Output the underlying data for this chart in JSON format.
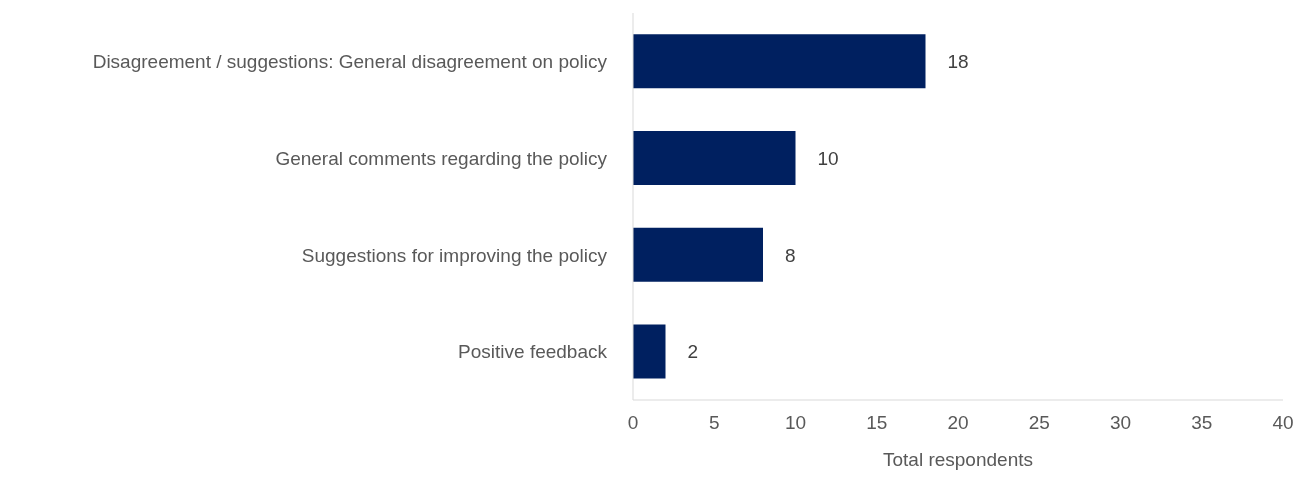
{
  "chart_data": {
    "type": "bar",
    "orientation": "horizontal",
    "xlabel": "Total respondents",
    "categories": [
      "Disagreement / suggestions: General disagreement on policy",
      "General comments regarding the policy",
      "Suggestions for improving the policy",
      "Positive feedback"
    ],
    "values": [
      18,
      10,
      8,
      2
    ],
    "color": "#002060",
    "xlim": [
      0,
      40
    ],
    "xticks": [
      0,
      5,
      10,
      15,
      20,
      25,
      30,
      35,
      40
    ],
    "data_labels": true,
    "grid": false,
    "legend": false
  }
}
